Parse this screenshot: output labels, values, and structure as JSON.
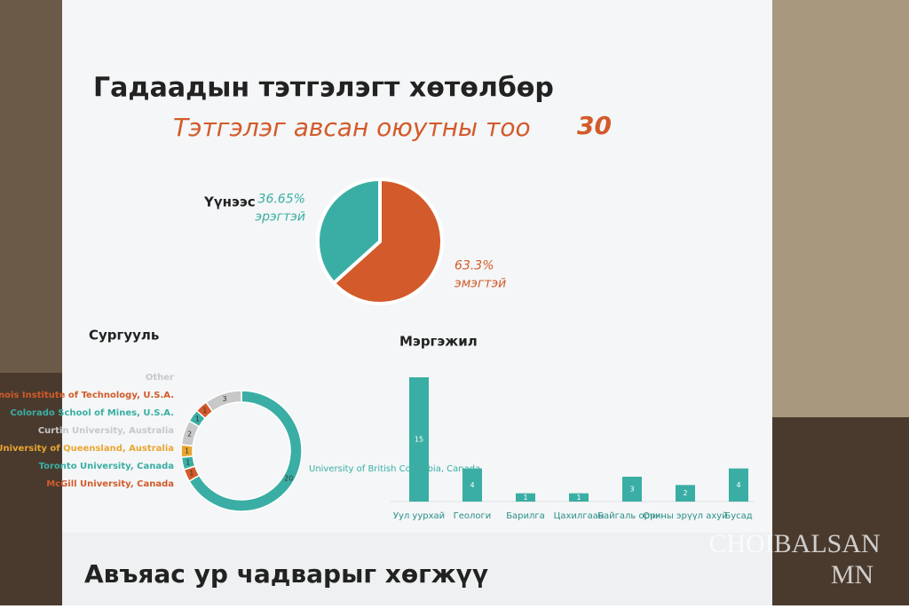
{
  "poster": {
    "title": "Гадаадын тэтгэлэгт хөтөлбөр",
    "subtitle": "Тэтгэлэг авсан оюутны тоо",
    "student_count": 30,
    "footer": "Авъяас ур чадварыг хөгжүү"
  },
  "watermark": {
    "line1": "CHOIBALSAN",
    "line2": "MN"
  },
  "chart_data": [
    {
      "type": "pie",
      "title": "Үүнээс",
      "categories": [
        "эмэгтэй",
        "эрэгтэй"
      ],
      "values": [
        63.3,
        36.65
      ],
      "value_labels": [
        "63.3%",
        "36.65%"
      ],
      "colors": [
        "#d35a2a",
        "#3aaea4"
      ]
    },
    {
      "type": "donut",
      "title": "Сургууль",
      "categories": [
        "University of British Columbia, Canada",
        "McGill University, Canada",
        "Toronto University, Canada",
        "University of Queensland, Australia",
        "Curtin University, Australia",
        "Colorado School of Mines, U.S.A.",
        "Illinois Institute of Technology, U.S.A.",
        "Other"
      ],
      "values": [
        20,
        1,
        1,
        1,
        2,
        1,
        1,
        3
      ],
      "colors": [
        "#3aaea4",
        "#d35a2a",
        "#3aaea4",
        "#e8a630",
        "#c8c8c8",
        "#3aaea4",
        "#d35a2a",
        "#c8c8c8"
      ]
    },
    {
      "type": "bar",
      "title": "Мэргэжил",
      "categories": [
        "Уул уурхай",
        "Геологи",
        "Барилга",
        "Цахилгаан",
        "Байгаль орчин",
        "Орчны эрүүл ахуй",
        "Бусад"
      ],
      "values": [
        15,
        4,
        1,
        1,
        3,
        2,
        4
      ],
      "color": "#3aaea4"
    }
  ]
}
